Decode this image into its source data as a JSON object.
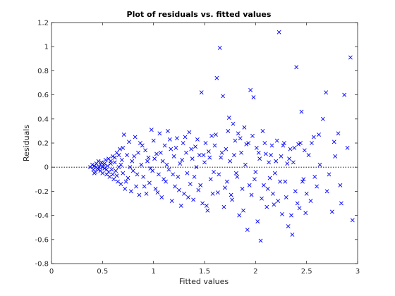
{
  "chart_data": {
    "type": "scatter",
    "title": "Plot of residuals vs. fitted values",
    "xlabel": "Fitted values",
    "ylabel": "Residuals",
    "xlim": [
      0,
      3
    ],
    "ylim": [
      -0.8,
      1.2
    ],
    "xticks": [
      0,
      0.5,
      1,
      1.5,
      2,
      2.5,
      3
    ],
    "yticks": [
      -0.8,
      -0.6,
      -0.4,
      -0.2,
      0,
      0.2,
      0.4,
      0.6,
      0.8,
      1,
      1.2
    ],
    "xtick_labels": [
      "0",
      "0.5",
      "1",
      "1.5",
      "2",
      "2.5",
      "3"
    ],
    "ytick_labels": [
      "-0.8",
      "-0.6",
      "-0.4",
      "-0.2",
      "0",
      "0.2",
      "0.4",
      "0.6",
      "0.8",
      "1",
      "1.2"
    ],
    "reference_line": {
      "y": 0,
      "style": "dotted",
      "color": "#000000"
    },
    "marker": "x",
    "marker_color": "#0000ff",
    "grid": false,
    "points": [
      [
        0.38,
        0.0
      ],
      [
        0.4,
        0.02
      ],
      [
        0.41,
        -0.02
      ],
      [
        0.42,
        0.01
      ],
      [
        0.43,
        -0.04
      ],
      [
        0.44,
        0.03
      ],
      [
        0.45,
        -0.01
      ],
      [
        0.46,
        0.05
      ],
      [
        0.47,
        0.0
      ],
      [
        0.48,
        -0.03
      ],
      [
        0.49,
        0.04
      ],
      [
        0.5,
        -0.05
      ],
      [
        0.51,
        0.02
      ],
      [
        0.52,
        -0.01
      ],
      [
        0.53,
        0.06
      ],
      [
        0.54,
        -0.06
      ],
      [
        0.55,
        0.01
      ],
      [
        0.56,
        0.07
      ],
      [
        0.57,
        -0.08
      ],
      [
        0.58,
        0.03
      ],
      [
        0.59,
        -0.02
      ],
      [
        0.6,
        0.09
      ],
      [
        0.61,
        -0.1
      ],
      [
        0.62,
        0.04
      ],
      [
        0.63,
        -0.03
      ],
      [
        0.64,
        0.12
      ],
      [
        0.65,
        -0.12
      ],
      [
        0.66,
        0.0
      ],
      [
        0.67,
        0.15
      ],
      [
        0.68,
        -0.14
      ],
      [
        0.69,
        0.06
      ],
      [
        0.7,
        -0.05
      ],
      [
        0.71,
        0.27
      ],
      [
        0.72,
        -0.18
      ],
      [
        0.74,
        0.1
      ],
      [
        0.75,
        -0.09
      ],
      [
        0.76,
        0.21
      ],
      [
        0.78,
        -0.2
      ],
      [
        0.79,
        0.05
      ],
      [
        0.8,
        -0.03
      ],
      [
        0.82,
        0.25
      ],
      [
        0.83,
        -0.16
      ],
      [
        0.85,
        0.12
      ],
      [
        0.86,
        -0.23
      ],
      [
        0.88,
        0.02
      ],
      [
        0.89,
        0.18
      ],
      [
        0.9,
        -0.08
      ],
      [
        0.92,
        0.14
      ],
      [
        0.93,
        -0.22
      ],
      [
        0.95,
        0.08
      ],
      [
        0.96,
        -0.13
      ],
      [
        0.98,
        0.31
      ],
      [
        0.99,
        -0.03
      ],
      [
        1.0,
        0.22
      ],
      [
        1.02,
        -0.18
      ],
      [
        1.03,
        0.11
      ],
      [
        1.05,
        -0.06
      ],
      [
        1.06,
        0.28
      ],
      [
        1.08,
        -0.25
      ],
      [
        1.09,
        0.05
      ],
      [
        1.11,
        0.18
      ],
      [
        1.12,
        -0.12
      ],
      [
        1.14,
        0.3
      ],
      [
        1.15,
        -0.02
      ],
      [
        1.17,
        0.15
      ],
      [
        1.18,
        -0.28
      ],
      [
        1.2,
        0.09
      ],
      [
        1.21,
        -0.16
      ],
      [
        1.23,
        0.24
      ],
      [
        1.24,
        -0.08
      ],
      [
        1.26,
        0.03
      ],
      [
        1.27,
        -0.32
      ],
      [
        1.29,
        0.2
      ],
      [
        1.3,
        -0.22
      ],
      [
        1.32,
        0.12
      ],
      [
        1.33,
        -0.05
      ],
      [
        1.35,
        0.29
      ],
      [
        1.36,
        -0.14
      ],
      [
        1.38,
        0.07
      ],
      [
        1.39,
        -0.27
      ],
      [
        1.41,
        0.17
      ],
      [
        1.42,
        0.0
      ],
      [
        1.44,
        -0.19
      ],
      [
        1.45,
        0.1
      ],
      [
        1.47,
        0.62
      ],
      [
        1.48,
        -0.3
      ],
      [
        1.5,
        0.04
      ],
      [
        1.51,
        0.2
      ],
      [
        1.53,
        -0.36
      ],
      [
        1.54,
        0.13
      ],
      [
        1.56,
        -0.1
      ],
      [
        1.57,
        0.26
      ],
      [
        1.59,
        -0.04
      ],
      [
        1.6,
        0.18
      ],
      [
        1.62,
        0.74
      ],
      [
        1.63,
        -0.21
      ],
      [
        1.65,
        0.99
      ],
      [
        1.66,
        0.08
      ],
      [
        1.68,
        0.59
      ],
      [
        1.69,
        -0.33
      ],
      [
        1.71,
        0.15
      ],
      [
        1.72,
        -0.12
      ],
      [
        1.74,
        0.41
      ],
      [
        1.75,
        0.05
      ],
      [
        1.77,
        -0.27
      ],
      [
        1.78,
        0.36
      ],
      [
        1.8,
        0.22
      ],
      [
        1.81,
        -0.05
      ],
      [
        1.83,
        0.28
      ],
      [
        1.84,
        -0.4
      ],
      [
        1.86,
        0.12
      ],
      [
        1.87,
        -0.18
      ],
      [
        1.89,
        0.33
      ],
      [
        1.9,
        0.02
      ],
      [
        1.92,
        -0.52
      ],
      [
        1.93,
        0.2
      ],
      [
        1.95,
        0.64
      ],
      [
        1.96,
        -0.23
      ],
      [
        1.98,
        0.58
      ],
      [
        1.99,
        -0.1
      ],
      [
        2.01,
        0.16
      ],
      [
        2.02,
        -0.45
      ],
      [
        2.04,
        0.07
      ],
      [
        2.05,
        -0.61
      ],
      [
        2.07,
        0.3
      ],
      [
        2.08,
        -0.15
      ],
      [
        2.1,
        0.11
      ],
      [
        2.11,
        -0.33
      ],
      [
        2.13,
        0.04
      ],
      [
        2.14,
        -0.09
      ],
      [
        2.16,
        0.18
      ],
      [
        2.17,
        -0.22
      ],
      [
        2.19,
        -0.05
      ],
      [
        2.21,
        0.22
      ],
      [
        2.22,
        -0.28
      ],
      [
        2.23,
        1.12
      ],
      [
        2.25,
        0.09
      ],
      [
        2.26,
        -0.39
      ],
      [
        2.28,
        0.2
      ],
      [
        2.29,
        -0.12
      ],
      [
        2.31,
        0.03
      ],
      [
        2.32,
        -0.49
      ],
      [
        2.34,
        0.15
      ],
      [
        2.36,
        -0.56
      ],
      [
        2.37,
        0.04
      ],
      [
        2.39,
        -0.2
      ],
      [
        2.4,
        0.83
      ],
      [
        2.42,
        0.19
      ],
      [
        2.43,
        -0.34
      ],
      [
        2.45,
        0.46
      ],
      [
        2.47,
        -0.1
      ],
      [
        2.48,
        0.14
      ],
      [
        2.5,
        -0.22
      ],
      [
        2.52,
        0.1
      ],
      [
        2.54,
        -0.28
      ],
      [
        2.57,
        0.25
      ],
      [
        2.6,
        -0.16
      ],
      [
        2.63,
        0.02
      ],
      [
        2.66,
        0.4
      ],
      [
        2.69,
        0.62
      ],
      [
        2.72,
        -0.06
      ],
      [
        2.75,
        -0.37
      ],
      [
        2.78,
        0.09
      ],
      [
        2.81,
        0.28
      ],
      [
        2.84,
        -0.3
      ],
      [
        2.87,
        0.6
      ],
      [
        2.9,
        0.16
      ],
      [
        2.93,
        0.91
      ],
      [
        2.95,
        -0.44
      ],
      [
        0.42,
        -0.05
      ],
      [
        0.44,
        0.0
      ],
      [
        0.46,
        -0.02
      ],
      [
        0.48,
        0.02
      ],
      [
        0.5,
        0.0
      ],
      [
        0.52,
        0.03
      ],
      [
        0.54,
        -0.02
      ],
      [
        0.56,
        -0.04
      ],
      [
        0.58,
        0.05
      ],
      [
        0.6,
        -0.06
      ],
      [
        0.62,
        0.08
      ],
      [
        0.64,
        -0.07
      ],
      [
        0.66,
        0.1
      ],
      [
        0.68,
        0.02
      ],
      [
        0.7,
        0.16
      ],
      [
        0.73,
        -0.12
      ],
      [
        0.77,
        0.0
      ],
      [
        0.81,
        0.09
      ],
      [
        0.84,
        -0.06
      ],
      [
        0.87,
        0.2
      ],
      [
        0.91,
        -0.16
      ],
      [
        0.94,
        0.05
      ],
      [
        0.97,
        -0.01
      ],
      [
        1.01,
        0.07
      ],
      [
        1.04,
        -0.21
      ],
      [
        1.07,
        0.12
      ],
      [
        1.1,
        -0.1
      ],
      [
        1.13,
        0.02
      ],
      [
        1.16,
        0.23
      ],
      [
        1.19,
        -0.06
      ],
      [
        1.22,
        0.16
      ],
      [
        1.25,
        -0.19
      ],
      [
        1.28,
        0.06
      ],
      [
        1.31,
        0.25
      ],
      [
        1.34,
        -0.25
      ],
      [
        1.37,
        0.15
      ],
      [
        1.4,
        -0.08
      ],
      [
        1.43,
        0.23
      ],
      [
        1.46,
        -0.15
      ],
      [
        1.49,
        0.1
      ],
      [
        1.52,
        -0.32
      ],
      [
        1.55,
        0.08
      ],
      [
        1.58,
        -0.22
      ],
      [
        1.61,
        0.27
      ],
      [
        1.64,
        -0.06
      ],
      [
        1.67,
        0.12
      ],
      [
        1.7,
        -0.17
      ],
      [
        1.73,
        0.3
      ],
      [
        1.76,
        -0.23
      ],
      [
        1.79,
        0.1
      ],
      [
        1.82,
        -0.08
      ],
      [
        1.85,
        0.24
      ],
      [
        1.88,
        -0.36
      ],
      [
        1.91,
        0.19
      ],
      [
        1.94,
        -0.15
      ],
      [
        1.97,
        0.26
      ],
      [
        2.0,
        -0.04
      ],
      [
        2.03,
        0.12
      ],
      [
        2.06,
        -0.26
      ],
      [
        2.09,
        0.2
      ],
      [
        2.12,
        -0.18
      ],
      [
        2.15,
        0.1
      ],
      [
        2.18,
        -0.31
      ],
      [
        2.2,
        0.05
      ],
      [
        2.24,
        -0.12
      ],
      [
        2.27,
        0.18
      ],
      [
        2.3,
        -0.25
      ],
      [
        2.33,
        0.07
      ],
      [
        2.35,
        -0.4
      ],
      [
        2.38,
        0.16
      ],
      [
        2.41,
        -0.3
      ],
      [
        2.44,
        0.2
      ],
      [
        2.46,
        -0.12
      ],
      [
        2.49,
        -0.38
      ],
      [
        2.55,
        0.2
      ],
      [
        2.58,
        -0.08
      ],
      [
        2.62,
        0.27
      ],
      [
        2.7,
        -0.2
      ],
      [
        2.77,
        0.21
      ],
      [
        2.83,
        -0.15
      ]
    ]
  }
}
